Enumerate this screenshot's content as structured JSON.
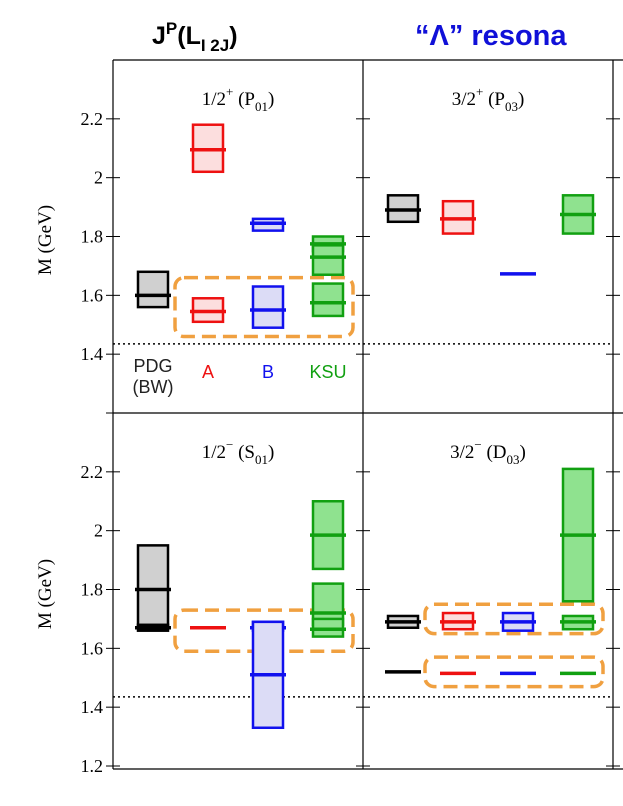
{
  "header": {
    "jp_main": "J",
    "jp_sup": "P",
    "jp_open": "(L",
    "jp_sub": "I 2J",
    "jp_close": ")",
    "lambda_title": "“Λ” resona"
  },
  "colors": {
    "PDG": {
      "stroke": "#000000",
      "fill": "#d0d0d0"
    },
    "A": {
      "stroke": "#ee1111",
      "fill": "#fcdede"
    },
    "B": {
      "stroke": "#1111ee",
      "fill": "#dcdcf6"
    },
    "KSU": {
      "stroke": "#11a011",
      "fill": "#8fe28f"
    },
    "highlight": "#f0a040",
    "threshold": "#000000"
  },
  "chart_data": {
    "type": "mass-spectrum-band-chart",
    "ylabel": "M (GeV)",
    "ylim": [
      1.2,
      2.4
    ],
    "yticks": [
      "1.2",
      "1.4",
      "1.6",
      "1.8",
      "2",
      "2.2"
    ],
    "threshold_mass": 1.435,
    "legend": [
      {
        "key": "PDG",
        "label": "PDG\n(BW)"
      },
      {
        "key": "A",
        "label": "A"
      },
      {
        "key": "B",
        "label": "B"
      },
      {
        "key": "KSU",
        "label": "KSU"
      }
    ],
    "series_order": [
      "PDG",
      "A",
      "B",
      "KSU"
    ],
    "panels": [
      {
        "title_main": "1/2",
        "title_sign": "+",
        "title_open": " (P",
        "title_sub": "01",
        "title_close": ")",
        "row": 0,
        "col": 0,
        "states": [
          {
            "series": "PDG",
            "mass": 1.6,
            "low": 1.56,
            "high": 1.68
          },
          {
            "series": "A",
            "mass": 2.095,
            "low": 2.02,
            "high": 2.18
          },
          {
            "series": "A",
            "mass": 1.545,
            "low": 1.51,
            "high": 1.59
          },
          {
            "series": "B",
            "mass": 1.845,
            "low": 1.82,
            "high": 1.86
          },
          {
            "series": "B",
            "mass": 1.55,
            "low": 1.49,
            "high": 1.63
          },
          {
            "series": "KSU",
            "mass": 1.775,
            "low": 1.75,
            "high": 1.8
          },
          {
            "series": "KSU",
            "mass": 1.73,
            "low": 1.67,
            "high": 1.77
          },
          {
            "series": "KSU",
            "mass": 1.575,
            "low": 1.53,
            "high": 1.64
          }
        ],
        "highlights": [
          {
            "low": 1.46,
            "high": 1.66
          }
        ]
      },
      {
        "title_main": "3/2",
        "title_sign": "+",
        "title_open": " (P",
        "title_sub": "03",
        "title_close": ")",
        "row": 0,
        "col": 1,
        "states": [
          {
            "series": "PDG",
            "mass": 1.89,
            "low": 1.85,
            "high": 1.94
          },
          {
            "series": "A",
            "mass": 1.86,
            "low": 1.81,
            "high": 1.92
          },
          {
            "series": "B",
            "mass": 1.673,
            "low": 1.673,
            "high": 1.673
          },
          {
            "series": "KSU",
            "mass": 1.875,
            "low": 1.81,
            "high": 1.94
          }
        ],
        "highlights": []
      },
      {
        "title_main": "1/2",
        "title_sign": "−",
        "title_open": " (S",
        "title_sub": "01",
        "title_close": ")",
        "row": 1,
        "col": 0,
        "states": [
          {
            "series": "PDG",
            "mass": 1.8,
            "low": 1.67,
            "high": 1.95
          },
          {
            "series": "PDG",
            "mass": 1.67,
            "low": 1.66,
            "high": 1.68
          },
          {
            "series": "A",
            "mass": 1.67,
            "low": 1.67,
            "high": 1.67
          },
          {
            "series": "B",
            "mass": 1.67,
            "low": 1.66,
            "high": 1.69
          },
          {
            "series": "B",
            "mass": 1.51,
            "low": 1.33,
            "high": 1.69
          },
          {
            "series": "KSU",
            "mass": 1.985,
            "low": 1.87,
            "high": 2.1
          },
          {
            "series": "KSU",
            "mass": 1.72,
            "low": 1.68,
            "high": 1.82
          },
          {
            "series": "KSU",
            "mass": 1.665,
            "low": 1.64,
            "high": 1.7
          }
        ],
        "highlights": [
          {
            "low": 1.59,
            "high": 1.73
          }
        ]
      },
      {
        "title_main": "3/2",
        "title_sign": "−",
        "title_open": " (D",
        "title_sub": "03",
        "title_close": ")",
        "row": 1,
        "col": 1,
        "states": [
          {
            "series": "PDG",
            "mass": 1.69,
            "low": 1.67,
            "high": 1.71
          },
          {
            "series": "PDG",
            "mass": 1.52,
            "low": 1.52,
            "high": 1.52
          },
          {
            "series": "A",
            "mass": 1.69,
            "low": 1.665,
            "high": 1.72
          },
          {
            "series": "A",
            "mass": 1.515,
            "low": 1.515,
            "high": 1.515
          },
          {
            "series": "B",
            "mass": 1.69,
            "low": 1.66,
            "high": 1.72
          },
          {
            "series": "B",
            "mass": 1.515,
            "low": 1.515,
            "high": 1.515
          },
          {
            "series": "KSU",
            "mass": 1.985,
            "low": 1.76,
            "high": 2.21
          },
          {
            "series": "KSU",
            "mass": 1.69,
            "low": 1.665,
            "high": 1.71
          },
          {
            "series": "KSU",
            "mass": 1.515,
            "low": 1.515,
            "high": 1.515
          }
        ],
        "highlights": [
          {
            "low": 1.65,
            "high": 1.75
          },
          {
            "low": 1.47,
            "high": 1.57
          }
        ]
      }
    ]
  }
}
